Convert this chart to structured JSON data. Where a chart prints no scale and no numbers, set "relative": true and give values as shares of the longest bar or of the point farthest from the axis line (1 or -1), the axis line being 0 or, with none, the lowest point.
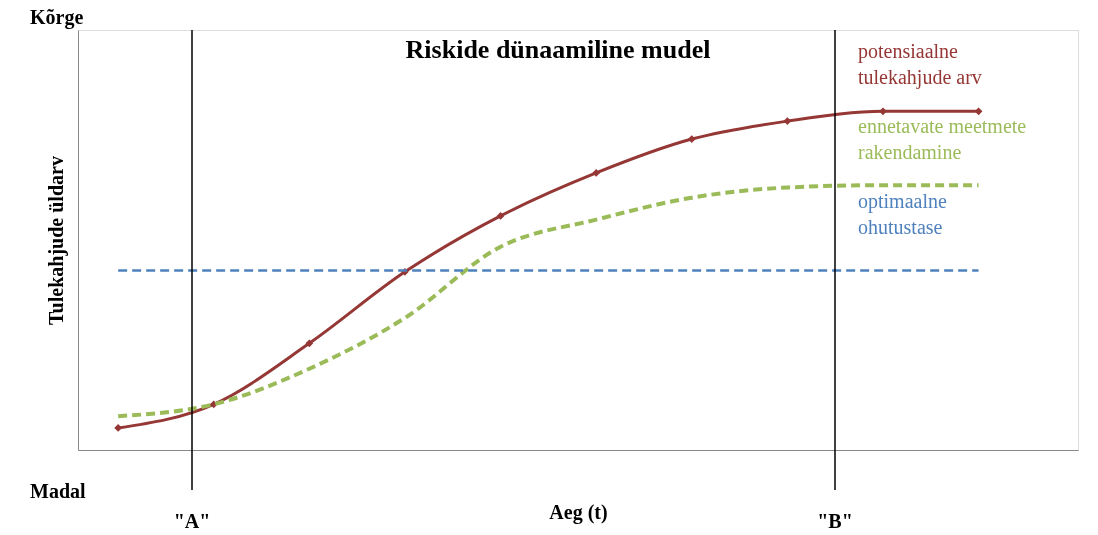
{
  "chart_data": {
    "type": "line",
    "title": "Riskide dünaamiline mudel",
    "xlabel": "Aeg (t)",
    "ylabel": "Tulekahjude üldarv",
    "relative": true,
    "grid": false,
    "legend": "top right",
    "categories": [
      null,
      null,
      null,
      null,
      null,
      null,
      null,
      null,
      null,
      null
    ],
    "series": [
      {
        "name": "potensiaalne tulekahjude arv",
        "color": "#953735",
        "marker": "diamond",
        "line_style": "solid",
        "values": [
          0.065,
          0.135,
          0.315,
          0.526,
          0.691,
          0.818,
          0.918,
          0.971,
          1.0,
          1.0
        ]
      },
      {
        "name": "ennetavate meetmete rakendamine",
        "color": "#9bbb59",
        "marker": "none",
        "line_style": "dashed",
        "values": [
          0.1,
          0.135,
          0.24,
          0.39,
          0.6,
          0.68,
          0.745,
          0.775,
          0.782,
          0.782
        ]
      },
      {
        "name": "optimaalne ohutustase",
        "color": "#4f81bd",
        "marker": "none",
        "line_style": "dashed",
        "values": [
          0.53,
          0.53,
          0.53,
          0.53,
          0.53,
          0.53,
          0.53,
          0.53,
          0.53,
          0.53
        ]
      }
    ],
    "annotations": [
      "Kõrge",
      "Madal",
      "\"A\"",
      "\"B\""
    ]
  }
}
